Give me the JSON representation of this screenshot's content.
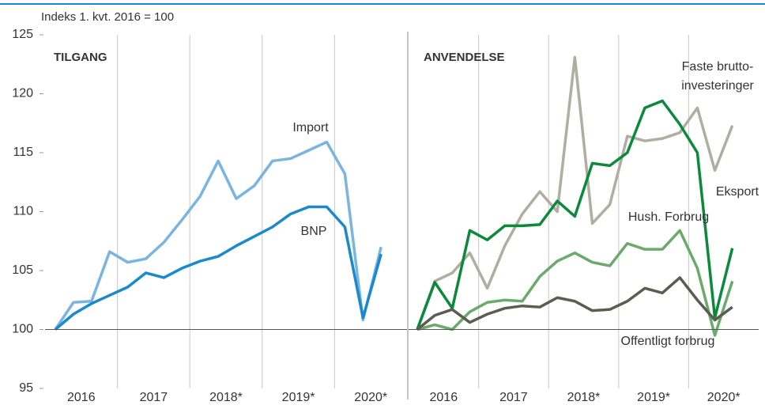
{
  "chart_data": [
    {
      "type": "line",
      "title": "TILGANG",
      "ylabel": "Indeks 1. kvt. 2016 = 100",
      "ylim": [
        95,
        125
      ],
      "yticks": [
        95,
        100,
        105,
        110,
        115,
        120,
        125
      ],
      "xtick_labels": [
        "2016",
        "2017",
        "2018*",
        "2019*",
        "2020*"
      ],
      "series": [
        {
          "name": [
            "Import"
          ],
          "color": "#7ab4e0",
          "values": [
            100,
            102.3,
            102.4,
            106.6,
            105.7,
            106.0,
            107.4,
            109.3,
            111.3,
            114.3,
            111.1,
            112.2,
            114.3,
            114.5,
            115.2,
            115.9,
            113.2,
            100.8,
            107.0
          ]
        },
        {
          "name": [
            "BNP"
          ],
          "color": "#1a8acc",
          "values": [
            100,
            101.3,
            102.2,
            102.9,
            103.6,
            104.8,
            104.4,
            105.2,
            105.8,
            106.2,
            107.1,
            107.9,
            108.7,
            109.8,
            110.4,
            110.4,
            108.7,
            101.0,
            106.4
          ]
        }
      ]
    },
    {
      "type": "line",
      "title": "ANVENDELSE",
      "ylim": [
        95,
        125
      ],
      "xtick_labels": [
        "2016",
        "2017",
        "2018*",
        "2019*",
        "2020*"
      ],
      "series": [
        {
          "name": [
            "Faste brutto-",
            "investeringer"
          ],
          "color": "#b0aea0",
          "values": [
            100,
            104.1,
            104.8,
            106.5,
            103.5,
            107.1,
            109.8,
            111.7,
            110.0,
            123.1,
            109.0,
            110.6,
            116.4,
            116.0,
            116.2,
            116.7,
            118.8,
            113.5,
            117.3
          ]
        },
        {
          "name": [
            "Eksport"
          ],
          "color": "#0a8a3a",
          "values": [
            100,
            104.0,
            101.8,
            108.4,
            107.6,
            108.8,
            108.8,
            108.9,
            110.9,
            109.6,
            114.1,
            113.9,
            115.0,
            118.8,
            119.4,
            117.4,
            115.0,
            101.0,
            106.9
          ]
        },
        {
          "name": [
            "Hush. Forbrug"
          ],
          "color": "#6aaa6a",
          "values": [
            100,
            100.4,
            100.0,
            101.5,
            102.3,
            102.5,
            102.4,
            104.5,
            105.8,
            106.5,
            105.7,
            105.4,
            107.3,
            106.8,
            106.8,
            108.4,
            105.2,
            99.5,
            104.1
          ]
        },
        {
          "name": [
            "Offentligt forbrug"
          ],
          "color": "#5c5c50",
          "values": [
            100,
            101.2,
            101.7,
            100.6,
            101.3,
            101.8,
            102.0,
            101.9,
            102.7,
            102.4,
            101.6,
            101.7,
            102.4,
            103.5,
            103.1,
            104.4,
            102.5,
            100.8,
            101.9
          ]
        }
      ]
    }
  ]
}
